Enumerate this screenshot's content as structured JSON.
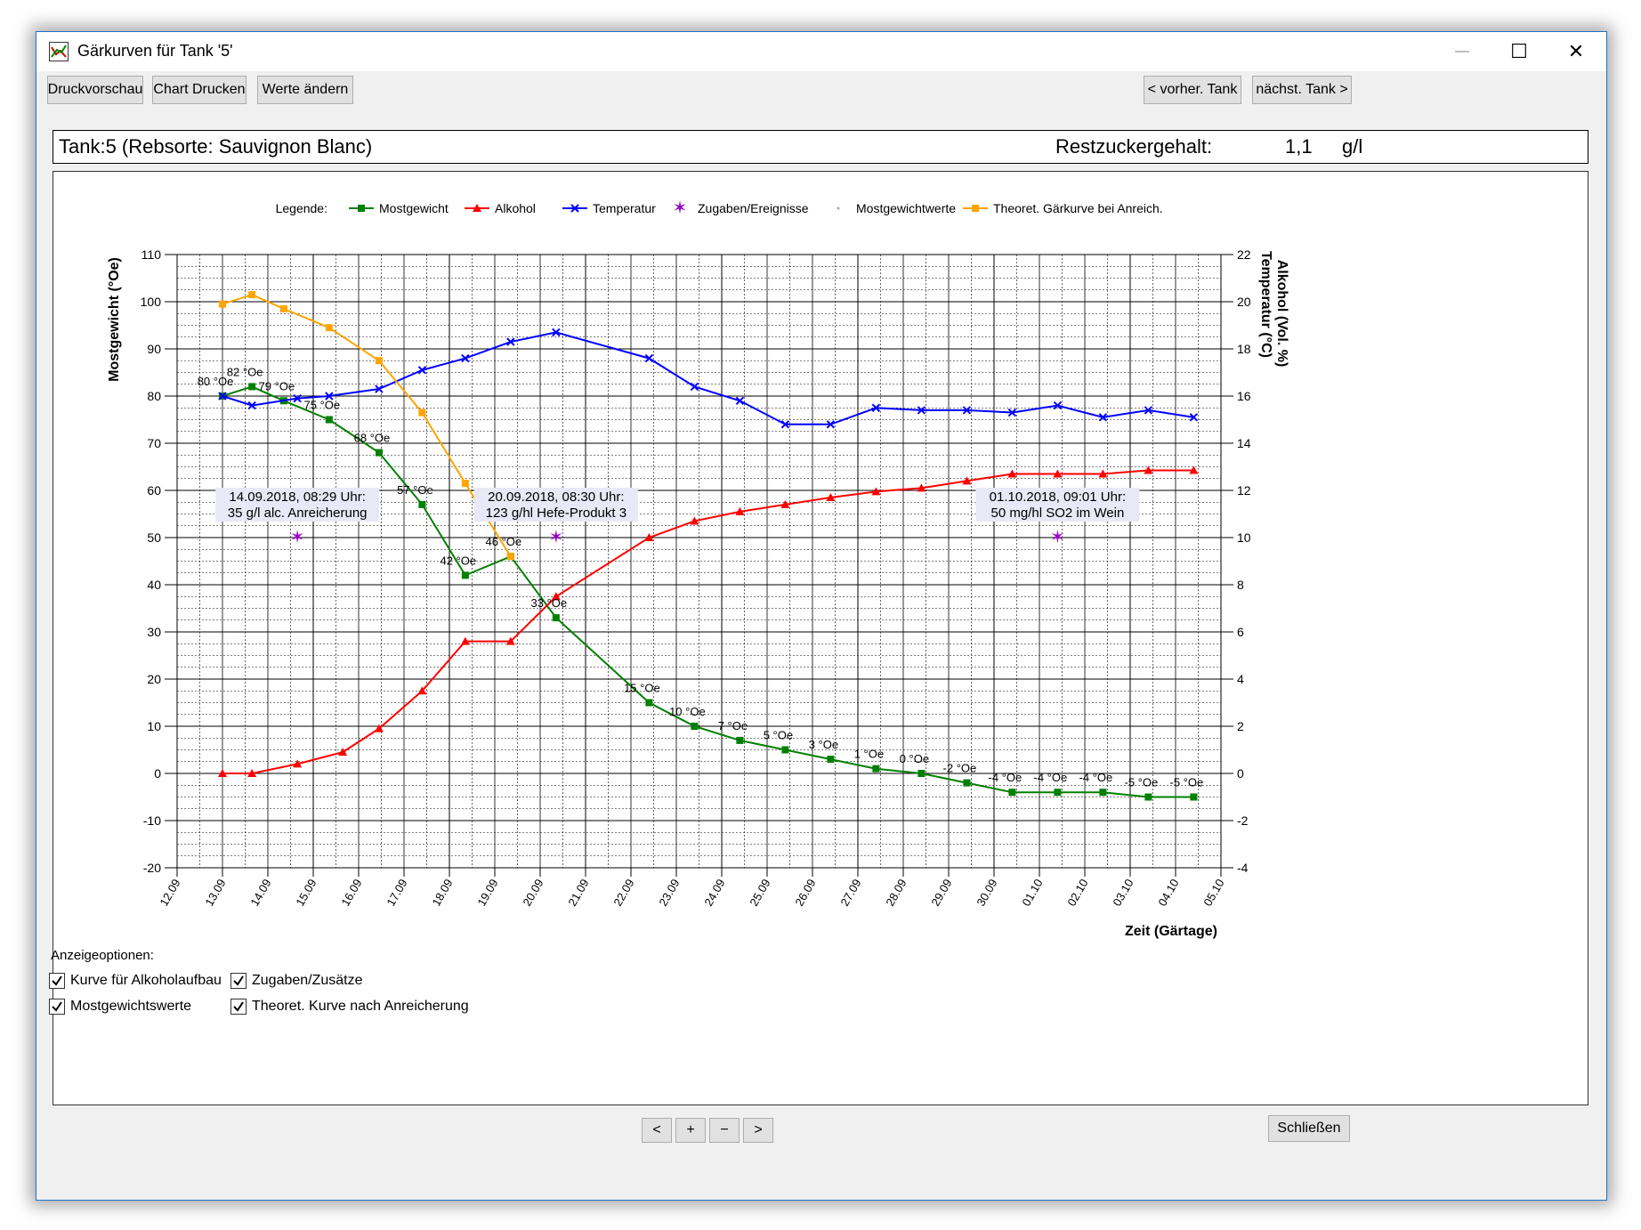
{
  "window": {
    "title": "Gärkurven für Tank '5'",
    "minimize_glyph": "—",
    "maximize_glyph": "☐",
    "close_glyph": "✕"
  },
  "toolbar": {
    "print_preview": "Druckvorschau",
    "print_chart": "Chart Drucken",
    "edit_values": "Werte ändern",
    "prev_tank": "< vorher. Tank",
    "next_tank": "nächst. Tank >"
  },
  "info": {
    "tank_label": "Tank:5 (Rebsorte: Sauvignon Blanc)",
    "residual_sugar_label": "Restzuckergehalt:",
    "residual_sugar_value": "1,1",
    "residual_sugar_unit": "g/l"
  },
  "chart_data": {
    "type": "line",
    "legend_title": "Legende:",
    "xlabel": "Zeit (Gärtage)",
    "ylabel_left": "Mostgewicht (°Oe)",
    "ylabel_right_1": "Alkohol (Vol. %)",
    "ylabel_right_2": "Temperatur (°C)",
    "xlim": [
      0,
      23
    ],
    "ylim_left": [
      -20,
      110
    ],
    "ylim_right": [
      -4,
      22
    ],
    "grid": true,
    "legend_position": "top",
    "x_tick_labels": [
      "12.09",
      "13.09",
      "14.09",
      "15.09",
      "16.09",
      "17.09",
      "18.09",
      "19.09",
      "20.09",
      "21.09",
      "22.09",
      "23.09",
      "24.09",
      "25.09",
      "26.09",
      "27.09",
      "28.09",
      "29.09",
      "30.09",
      "01.10",
      "02.10",
      "03.10",
      "04.10",
      "05.10"
    ],
    "y_ticks_left": [
      "110",
      "100",
      "90",
      "80",
      "70",
      "60",
      "50",
      "40",
      "30",
      "20",
      "10",
      "0",
      "-10",
      "-20"
    ],
    "y_ticks_right": [
      "22",
      "20",
      "18",
      "16",
      "14",
      "12",
      "10",
      "8",
      "6",
      "4",
      "2",
      "0",
      "-2",
      "-4"
    ],
    "series": [
      {
        "name": "Mostgewicht",
        "color": "#008000",
        "marker": "square",
        "axis": "left",
        "x": [
          1.0,
          1.65,
          2.35,
          3.35,
          4.45,
          5.4,
          6.35,
          7.35,
          8.35,
          10.4,
          11.4,
          12.4,
          13.4,
          14.4,
          15.4,
          16.4,
          17.4,
          18.4,
          19.4,
          20.4,
          21.4,
          22.4
        ],
        "values": [
          80,
          82,
          79,
          75,
          68,
          57,
          42,
          46,
          33,
          15,
          10,
          7,
          5,
          3,
          1,
          0,
          -2,
          -4,
          -4,
          -4,
          -5,
          -5
        ]
      },
      {
        "name": "Alkohol",
        "color": "#ff0000",
        "marker": "triangle",
        "axis": "right",
        "x": [
          1.0,
          1.65,
          2.65,
          3.65,
          4.45,
          5.4,
          6.35,
          7.35,
          8.35,
          10.4,
          11.4,
          12.4,
          13.4,
          14.4,
          15.4,
          16.4,
          17.4,
          18.4,
          19.4,
          20.4,
          21.4,
          22.4
        ],
        "values": [
          0,
          0,
          0.4,
          0.9,
          1.9,
          3.5,
          5.6,
          5.6,
          7.5,
          10.0,
          10.7,
          11.1,
          11.4,
          11.7,
          11.95,
          12.1,
          12.4,
          12.7,
          12.7,
          12.7,
          12.85,
          12.85
        ]
      },
      {
        "name": "Temperatur",
        "color": "#0000ff",
        "marker": "x",
        "axis": "right",
        "x": [
          1.0,
          1.65,
          2.65,
          3.35,
          4.45,
          5.4,
          6.35,
          7.35,
          8.35,
          10.4,
          11.4,
          12.4,
          13.4,
          14.4,
          15.4,
          16.4,
          17.4,
          18.4,
          19.4,
          20.4,
          21.4,
          22.4
        ],
        "values": [
          16.0,
          15.6,
          15.9,
          16.0,
          16.3,
          17.1,
          17.6,
          18.3,
          18.7,
          17.6,
          16.4,
          15.8,
          14.8,
          14.8,
          15.5,
          15.4,
          15.4,
          15.3,
          15.6,
          15.1,
          15.4,
          15.1
        ]
      },
      {
        "name": "Theoret. Gärkurve bei Anreich.",
        "color": "#ffa500",
        "marker": "square",
        "axis": "left",
        "x": [
          1.0,
          1.65,
          2.35,
          3.35,
          4.45,
          5.4,
          6.35,
          7.35
        ],
        "values": [
          99.5,
          101.5,
          98.5,
          94.5,
          87.5,
          76.5,
          61.5,
          46
        ]
      }
    ],
    "legend_items": [
      {
        "name": "Mostgewicht",
        "color": "#008000",
        "marker": "square"
      },
      {
        "name": "Alkohol",
        "color": "#ff0000",
        "marker": "triangle"
      },
      {
        "name": "Temperatur",
        "color": "#0000ff",
        "marker": "x"
      },
      {
        "name": "Zugaben/Ereignisse",
        "color": "#9900cc",
        "marker": "star"
      },
      {
        "name": "Mostgewichtwerte",
        "color": "#aaaaaa",
        "marker": "dot"
      },
      {
        "name": "Theoret. Gärkurve bei Anreich.",
        "color": "#ffa500",
        "marker": "square"
      }
    ],
    "point_labels": [
      "80 °Oe",
      "82 °Oe",
      "79 °Oe",
      "75 °Oe",
      "68 °Oe",
      "57 °Oe",
      "42 °Oe",
      "46 °Oe",
      "33 °Oe",
      "15 °Oe",
      "10 °Oe",
      "7 °Oe",
      "5 °Oe",
      "3 °Oe",
      "1 °Oe",
      "0 °Oe",
      "-2 °Oe",
      "-4 °Oe",
      "-4 °Oe",
      "-4 °Oe",
      "-5 °Oe",
      "-5 °Oe"
    ],
    "events": [
      {
        "x": 2.65,
        "y": 50,
        "line1": "14.09.2018, 08:29 Uhr:",
        "line2": "35 g/l alc. Anreicherung"
      },
      {
        "x": 8.35,
        "y": 50,
        "line1": "20.09.2018, 08:30 Uhr:",
        "line2": "123 g/hl Hefe-Produkt 3"
      },
      {
        "x": 19.4,
        "y": 50,
        "line1": "01.10.2018, 09:01 Uhr:",
        "line2": "50 mg/hl SO2 im Wein"
      }
    ]
  },
  "options": {
    "title": "Anzeigeoptionen:",
    "items": [
      {
        "label": "Kurve für Alkoholaufbau",
        "checked": true
      },
      {
        "label": "Zugaben/Zusätze",
        "checked": true
      },
      {
        "label": "Mostgewichtswerte",
        "checked": true
      },
      {
        "label": "Theoret. Kurve nach Anreicherung",
        "checked": true
      }
    ]
  },
  "nav": {
    "left": "<",
    "zoom_in": "+",
    "zoom_out": "−",
    "right": ">",
    "close": "Schließen"
  }
}
